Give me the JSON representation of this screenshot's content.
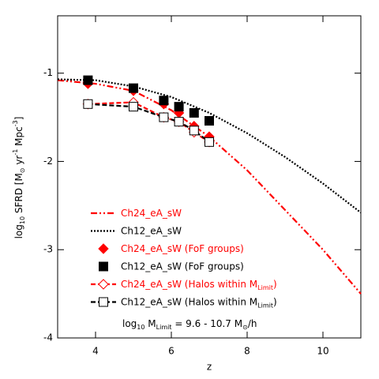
{
  "chart_data": {
    "type": "line",
    "xlabel": "z",
    "ylabel": [
      "log",
      "10",
      " SFRD [M",
      "⊙",
      " yr",
      "-1",
      " Mpc",
      "-3",
      "]"
    ],
    "annotation": [
      "log",
      "10",
      " M",
      "Limit",
      " = 9.6  - 10.7 M",
      "⊙",
      "/h"
    ],
    "xlim": [
      3,
      11
    ],
    "xticks": [
      4,
      6,
      8,
      10
    ],
    "ylim": [
      -4,
      -0.35
    ],
    "yticks": [
      -4,
      -3,
      -2,
      -1
    ],
    "series": [
      {
        "name": [
          "Ch24_eA_sW"
        ],
        "color": "#ff0000",
        "style": "dashdotdot",
        "marker": "none",
        "x": [
          3,
          4,
          5,
          6,
          7,
          8,
          9,
          10,
          11
        ],
        "values": [
          -1.08,
          -1.12,
          -1.2,
          -1.42,
          -1.72,
          -2.1,
          -2.55,
          -3.0,
          -3.5
        ]
      },
      {
        "name": [
          "Ch12_eA_sW"
        ],
        "color": "#000000",
        "style": "dotted",
        "marker": "none",
        "x": [
          3,
          4,
          5,
          6,
          7,
          8,
          9,
          10,
          11
        ],
        "values": [
          -1.07,
          -1.08,
          -1.15,
          -1.27,
          -1.45,
          -1.68,
          -1.95,
          -2.25,
          -2.58
        ]
      },
      {
        "name": [
          "Ch24_eA_sW (FoF groups)"
        ],
        "color": "#ff0000",
        "style": "none",
        "marker": "diamond",
        "x": [
          3.8,
          5,
          5.8,
          6.2,
          6.6,
          7
        ],
        "values": [
          -1.12,
          -1.2,
          -1.35,
          -1.45,
          -1.6,
          -1.72
        ]
      },
      {
        "name": [
          "Ch12_eA_sW (FoF groups)"
        ],
        "color": "#000000",
        "style": "none",
        "marker": "square",
        "x": [
          3.8,
          5,
          5.8,
          6.2,
          6.6,
          7
        ],
        "values": [
          -1.08,
          -1.17,
          -1.31,
          -1.38,
          -1.45,
          -1.54
        ]
      },
      {
        "name": [
          "Ch24_eA_sW (Halos within M",
          "Limit",
          ")"
        ],
        "color": "#ff0000",
        "style": "dashed",
        "marker": "open-diamond",
        "x": [
          3.8,
          5,
          5.8,
          6.2,
          6.6,
          7
        ],
        "values": [
          -1.35,
          -1.33,
          -1.5,
          -1.55,
          -1.67,
          -1.78
        ]
      },
      {
        "name": [
          "Ch12_eA_sW (Halos within M",
          "Limit",
          ")"
        ],
        "color": "#000000",
        "style": "dashed",
        "marker": "open-square",
        "x": [
          3.8,
          5,
          5.8,
          6.2,
          6.6,
          7
        ],
        "values": [
          -1.35,
          -1.38,
          -1.5,
          -1.55,
          -1.65,
          -1.78
        ]
      }
    ]
  }
}
